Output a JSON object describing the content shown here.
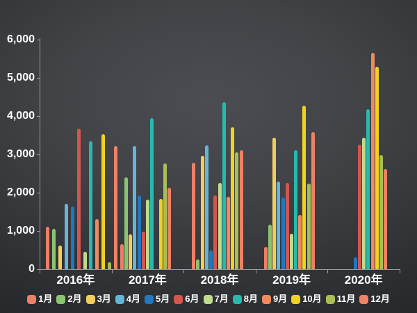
{
  "chart_data": {
    "type": "bar",
    "title": "",
    "xlabel": "",
    "ylabel": "",
    "categories": [
      "2016年",
      "2017年",
      "2018年",
      "2019年",
      "2020年"
    ],
    "series": [
      {
        "name": "1月",
        "color": "#ee7e66",
        "values": [
          1100,
          660,
          2790,
          590,
          null
        ]
      },
      {
        "name": "2月",
        "color": "#8bc36f",
        "values": [
          1050,
          2400,
          250,
          1170,
          null
        ]
      },
      {
        "name": "3月",
        "color": "#f0cd5e",
        "values": [
          620,
          900,
          2960,
          3430,
          null
        ]
      },
      {
        "name": "4月",
        "color": "#64b5d6",
        "values": [
          1710,
          3220,
          3240,
          2290,
          null
        ]
      },
      {
        "name": "5月",
        "color": "#2178c0",
        "values": [
          1640,
          1930,
          490,
          1870,
          310
        ]
      },
      {
        "name": "6月",
        "color": "#d3554e",
        "values": [
          3670,
          980,
          1930,
          2260,
          3250
        ]
      },
      {
        "name": "7月",
        "color": "#c0da8f",
        "values": [
          460,
          1820,
          2250,
          920,
          3430
        ]
      },
      {
        "name": "8月",
        "color": "#27b9ae",
        "values": [
          3340,
          3940,
          4370,
          3100,
          4180
        ]
      },
      {
        "name": "9月",
        "color": "#ee8a5d",
        "values": [
          1310,
          null,
          1890,
          1410,
          5660
        ]
      },
      {
        "name": "10月",
        "color": "#f0d321",
        "values": [
          3520,
          1840,
          3700,
          4280,
          5290
        ]
      },
      {
        "name": "11月",
        "color": "#a9be54",
        "values": [
          190,
          2760,
          3050,
          2240,
          2980
        ]
      },
      {
        "name": "12月",
        "color": "#ef8164",
        "values": [
          3210,
          2120,
          3100,
          3590,
          2610
        ]
      }
    ],
    "ylim": [
      0,
      6000
    ],
    "ytick_interval": 1000,
    "ytick_labels": [
      "0",
      "1,000",
      "2,000",
      "3,000",
      "4,000",
      "5,000",
      "6,000"
    ],
    "grid": false,
    "legend_position": "bottom",
    "background_color": "#3a3c41",
    "text_color": "#ffffff",
    "axis_color": "#9b9da0"
  }
}
